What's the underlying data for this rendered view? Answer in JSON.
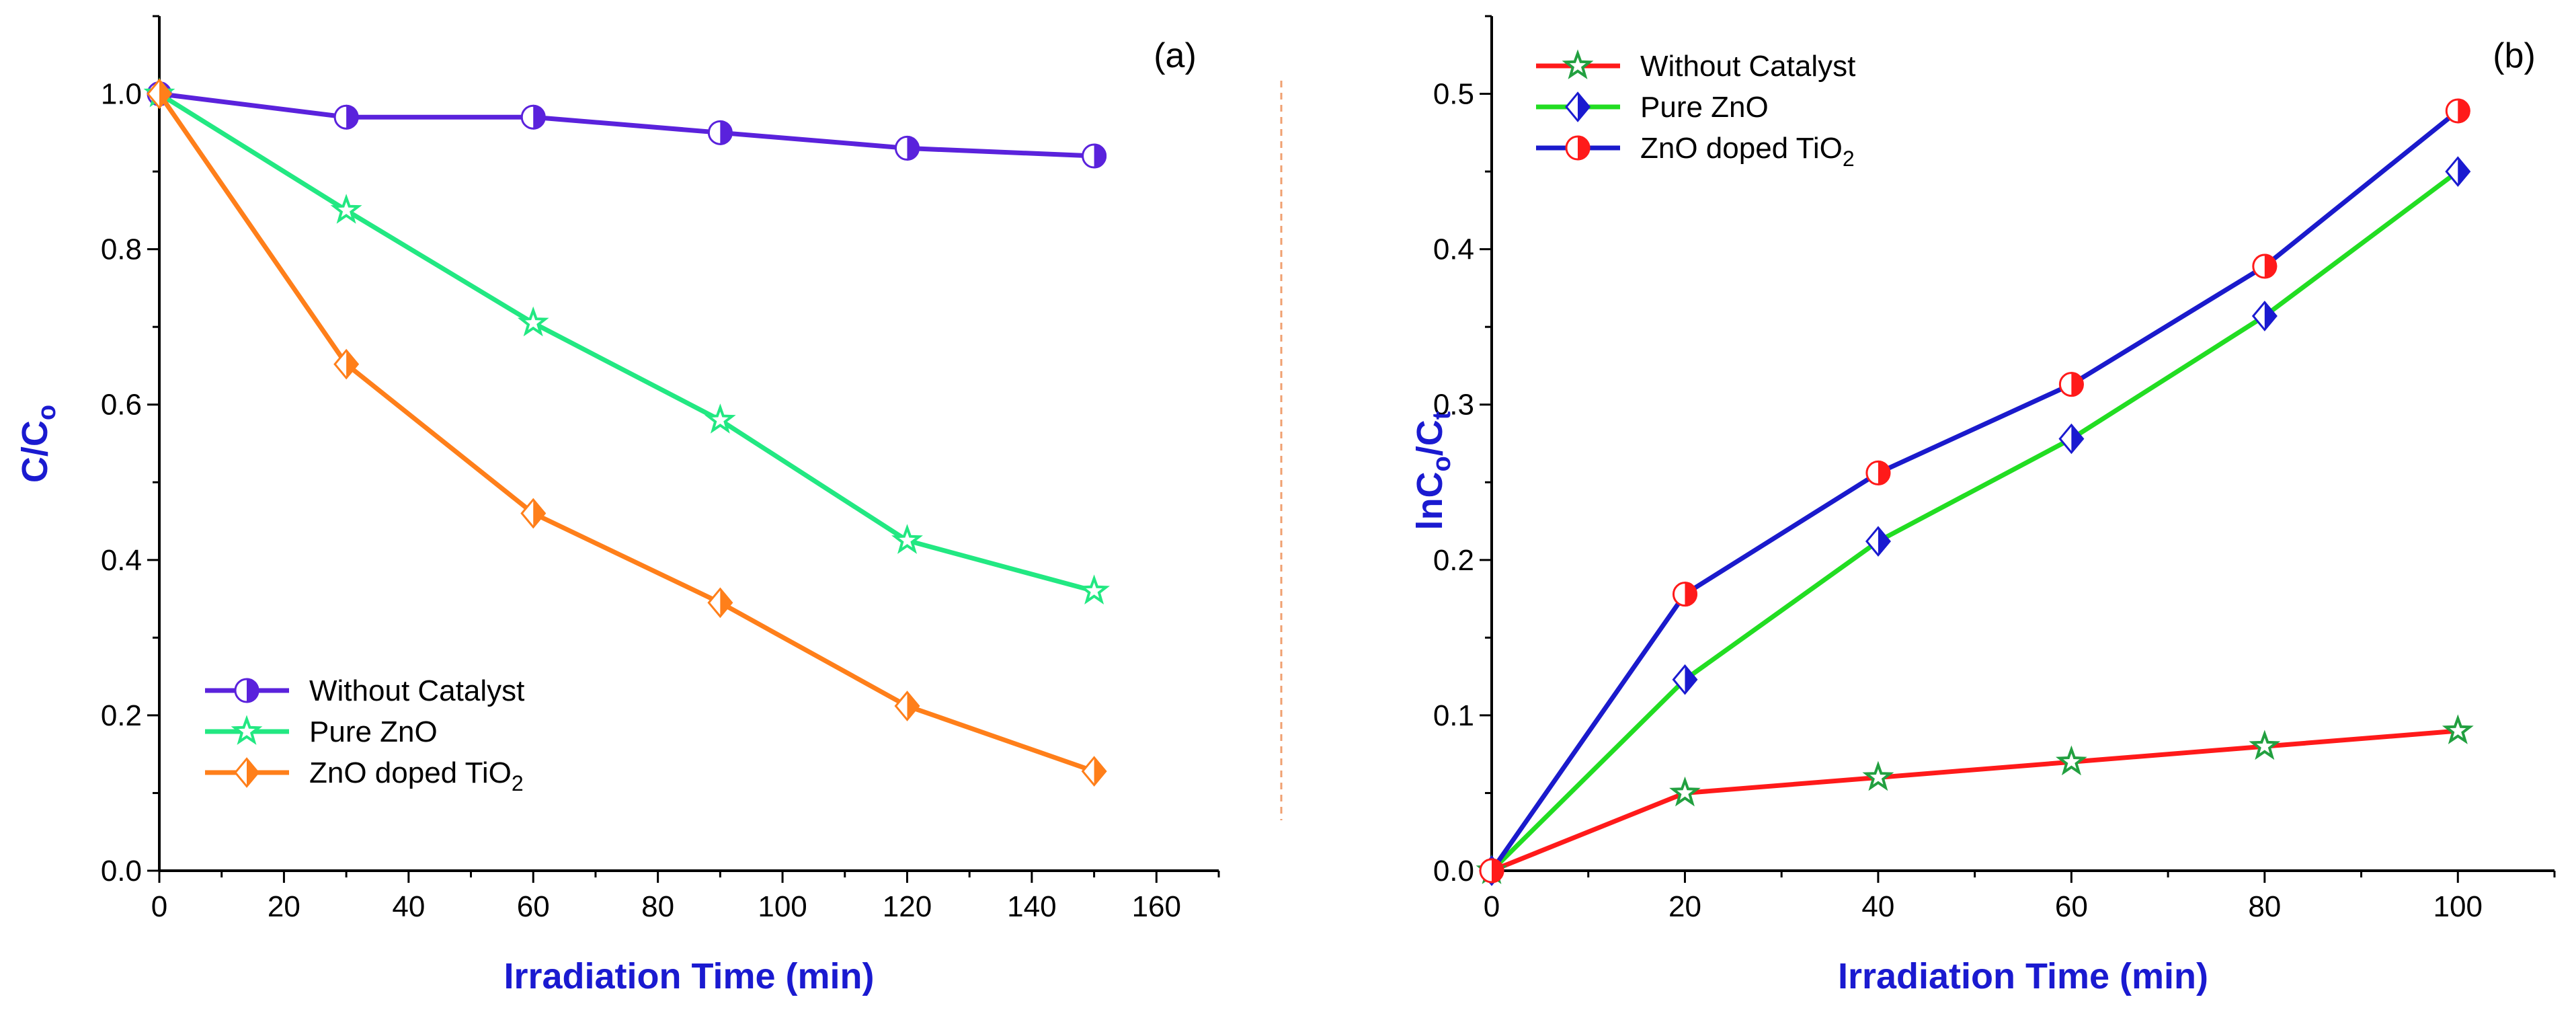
{
  "chart_data": [
    {
      "type": "line",
      "panel_label": "(a)",
      "xlabel": "Irradiation Time (min)",
      "ylabel_main": "C/C",
      "ylabel_sub": "o",
      "xlim": [
        0,
        170
      ],
      "ylim": [
        0,
        1.1
      ],
      "xticks": [
        "0",
        "20",
        "40",
        "60",
        "80",
        "100",
        "120",
        "140",
        "160"
      ],
      "yticks": [
        "0.0",
        "0.2",
        "0.4",
        "0.6",
        "0.8",
        "1.0"
      ],
      "legend_position": "bottom-left",
      "x": [
        0,
        30,
        60,
        90,
        120,
        150
      ],
      "series": [
        {
          "name": "Without Catalyst",
          "values": [
            1.0,
            0.97,
            0.97,
            0.95,
            0.93,
            0.92
          ],
          "color": "#5a22dc",
          "marker": "half-circle",
          "marker_color": "#5a22dc"
        },
        {
          "name": "Pure ZnO",
          "values": [
            1.0,
            0.85,
            0.705,
            0.58,
            0.425,
            0.36
          ],
          "color": "#22e882",
          "marker": "star",
          "marker_color": "#22e882"
        },
        {
          "name": "ZnO doped TiO",
          "name_sub": "2",
          "values": [
            1.0,
            0.652,
            0.46,
            0.345,
            0.212,
            0.128
          ],
          "color": "#ff7f1a",
          "marker": "half-diamond",
          "marker_color": "#ff7f1a"
        }
      ]
    },
    {
      "type": "line",
      "panel_label": "(b)",
      "xlabel": "Irradiation Time (min)",
      "ylabel_main": "lnC",
      "ylabel_sub": "o",
      "ylabel_main2": "/C",
      "ylabel_sub2": "t",
      "xlim": [
        0,
        110
      ],
      "ylim": [
        0,
        0.55
      ],
      "xticks": [
        "0",
        "20",
        "40",
        "60",
        "80",
        "100"
      ],
      "yticks": [
        "0.0",
        "0.1",
        "0.2",
        "0.3",
        "0.4",
        "0.5"
      ],
      "legend_position": "top-left",
      "x": [
        0,
        20,
        40,
        60,
        80,
        100
      ],
      "series": [
        {
          "name": "Without Catalyst",
          "values": [
            0,
            0.05,
            0.06,
            0.07,
            0.08,
            0.09
          ],
          "color": "#ff1a1a",
          "marker": "star",
          "marker_color": "#22a040"
        },
        {
          "name": "Pure ZnO",
          "values": [
            0,
            0.123,
            0.212,
            0.278,
            0.357,
            0.45
          ],
          "color": "#22dd22",
          "marker": "half-diamond",
          "marker_color": "#1a1ad0"
        },
        {
          "name": "ZnO doped TiO",
          "name_sub": "2",
          "values": [
            0,
            0.178,
            0.256,
            0.313,
            0.389,
            0.489
          ],
          "color": "#1a1acc",
          "marker": "half-circle",
          "marker_color": "#ff1a1a"
        }
      ]
    }
  ]
}
